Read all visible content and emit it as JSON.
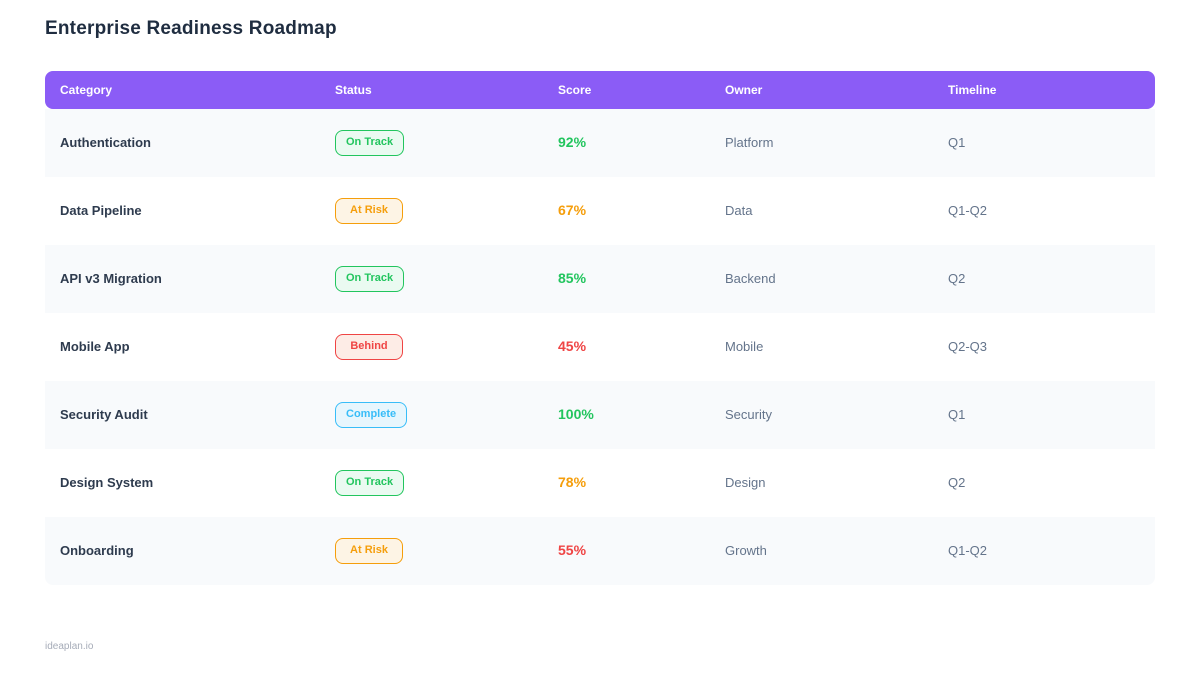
{
  "page": {
    "title": "Enterprise Readiness Roadmap",
    "footer": "ideaplan.io"
  },
  "colors": {
    "header_bg": "#8B5CF6",
    "score": {
      "green": "#22c55e",
      "orange": "#f59e0b",
      "red": "#ef4444"
    },
    "status": {
      "on-track": {
        "text": "#22c55e",
        "border": "#22c55e",
        "bg": "#eafaf1"
      },
      "at-risk": {
        "text": "#f59e0b",
        "border": "#f59e0b",
        "bg": "#fdf4e5"
      },
      "behind": {
        "text": "#ef4444",
        "border": "#ef4444",
        "bg": "#fdece6"
      },
      "complete": {
        "text": "#38bdf8",
        "border": "#38bdf8",
        "bg": "#e7f6fd"
      }
    }
  },
  "table": {
    "headers": [
      "Category",
      "Status",
      "Score",
      "Owner",
      "Timeline"
    ],
    "rows": [
      {
        "category": "Authentication",
        "status": {
          "label": "On Track",
          "variant": "on-track"
        },
        "score": {
          "value": "92%",
          "color": "green"
        },
        "owner": "Platform",
        "timeline": "Q1"
      },
      {
        "category": "Data Pipeline",
        "status": {
          "label": "At Risk",
          "variant": "at-risk"
        },
        "score": {
          "value": "67%",
          "color": "orange"
        },
        "owner": "Data",
        "timeline": "Q1-Q2"
      },
      {
        "category": "API v3 Migration",
        "status": {
          "label": "On Track",
          "variant": "on-track"
        },
        "score": {
          "value": "85%",
          "color": "green"
        },
        "owner": "Backend",
        "timeline": "Q2"
      },
      {
        "category": "Mobile App",
        "status": {
          "label": "Behind",
          "variant": "behind"
        },
        "score": {
          "value": "45%",
          "color": "red"
        },
        "owner": "Mobile",
        "timeline": "Q2-Q3"
      },
      {
        "category": "Security Audit",
        "status": {
          "label": "Complete",
          "variant": "complete"
        },
        "score": {
          "value": "100%",
          "color": "green"
        },
        "owner": "Security",
        "timeline": "Q1"
      },
      {
        "category": "Design System",
        "status": {
          "label": "On Track",
          "variant": "on-track"
        },
        "score": {
          "value": "78%",
          "color": "orange"
        },
        "owner": "Design",
        "timeline": "Q2"
      },
      {
        "category": "Onboarding",
        "status": {
          "label": "At Risk",
          "variant": "at-risk"
        },
        "score": {
          "value": "55%",
          "color": "red"
        },
        "owner": "Growth",
        "timeline": "Q1-Q2"
      }
    ]
  }
}
